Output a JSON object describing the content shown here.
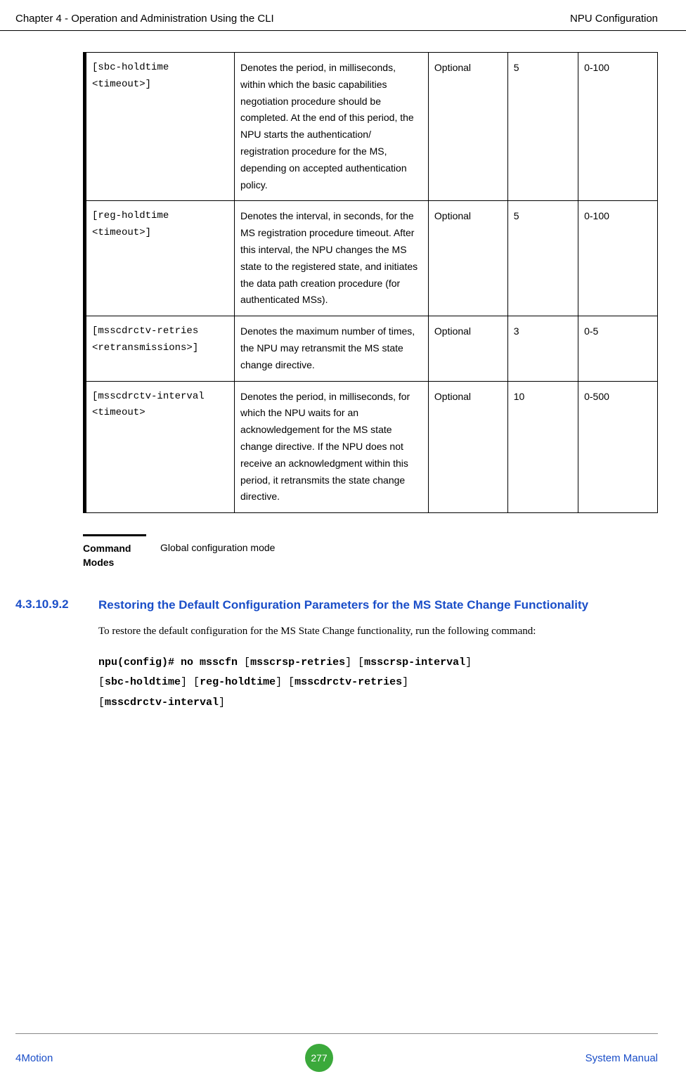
{
  "header": {
    "left": "Chapter 4 - Operation and Administration Using the CLI",
    "right": "NPU Configuration"
  },
  "table": {
    "rows": [
      {
        "param": "[sbc-holdtime <timeout>]",
        "desc": "Denotes the period, in milliseconds, within which the basic capabilities negotiation procedure should be completed. At the end of this period, the NPU starts the authentication/ registration procedure for the MS, depending on accepted authentication policy.",
        "opt": "Optional",
        "def": "5",
        "range": "0-100"
      },
      {
        "param": "[reg-holdtime <timeout>]",
        "desc": "Denotes the interval, in seconds, for the MS registration procedure timeout. After this interval, the NPU changes the MS state to the registered state, and initiates the data path creation procedure (for authenticated MSs).",
        "opt": "Optional",
        "def": "5",
        "range": "0-100"
      },
      {
        "param": "[msscdrctv-retries <retransmissions>]",
        "desc": "Denotes the maximum number of times, the NPU may retransmit the MS state change directive.",
        "opt": "Optional",
        "def": "3",
        "range": "0-5"
      },
      {
        "param": "[msscdrctv-interval <timeout>",
        "desc": "Denotes the period, in milliseconds, for which the NPU waits for an acknowledgement for the MS state change directive. If the NPU does not receive an acknowledgment within this period, it retransmits the state change directive.",
        "opt": "Optional",
        "def": "10",
        "range": "0-500"
      }
    ]
  },
  "commandModes": {
    "label": "Command Modes",
    "value": "Global configuration mode"
  },
  "section": {
    "number": "4.3.10.9.2",
    "title": "Restoring the Default Configuration Parameters for the MS State Change Functionality"
  },
  "bodyText": "To restore the default configuration for the MS State Change functionality, run the following command:",
  "command": {
    "line1_prefix": "npu(config)# no msscfn",
    "line1_rest": " [",
    "p1": "msscrsp-retries",
    "mid1": "] [",
    "p2": "msscrsp-interval",
    "end1": "]",
    "line2_start": "[",
    "p3": "sbc-holdtime",
    "mid2": "] [",
    "p4": "reg-holdtime",
    "mid3": "] [",
    "p5": "msscdrctv-retries",
    "end2": "]",
    "line3_start": "[",
    "p6": "msscdrctv-interval",
    "end3": "]"
  },
  "footer": {
    "left": "4Motion",
    "page": "277",
    "right": "System Manual"
  }
}
